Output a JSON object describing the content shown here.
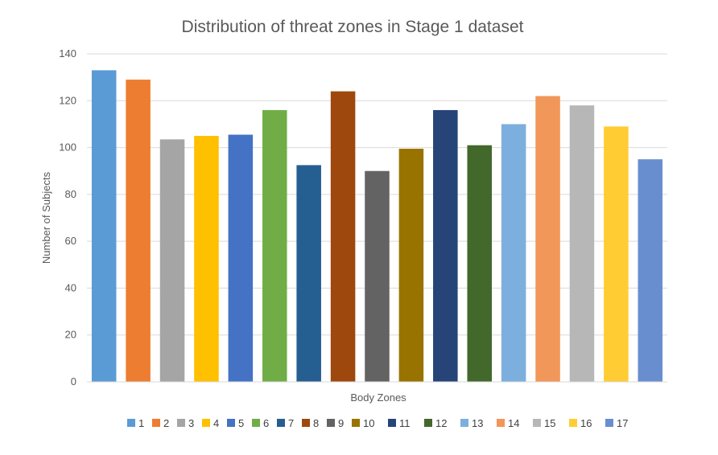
{
  "chart_data": {
    "type": "bar",
    "title": "Distribution of threat zones in Stage 1 dataset",
    "xlabel": "Body Zones",
    "ylabel": "Number of Subjects",
    "ylim": [
      0,
      140
    ],
    "yticks": [
      0,
      20,
      40,
      60,
      80,
      100,
      120,
      140
    ],
    "grid": true,
    "legend_position": "bottom",
    "series": [
      {
        "name": "1",
        "value": 133,
        "color": "#5B9BD5"
      },
      {
        "name": "2",
        "value": 129,
        "color": "#ED7D31"
      },
      {
        "name": "3",
        "value": 103.5,
        "color": "#A5A5A5"
      },
      {
        "name": "4",
        "value": 105,
        "color": "#FFC000"
      },
      {
        "name": "5",
        "value": 105.5,
        "color": "#4472C4"
      },
      {
        "name": "6",
        "value": 116,
        "color": "#70AD47"
      },
      {
        "name": "7",
        "value": 92.5,
        "color": "#255E91"
      },
      {
        "name": "8",
        "value": 124,
        "color": "#9E480E"
      },
      {
        "name": "9",
        "value": 90,
        "color": "#636363"
      },
      {
        "name": "10",
        "value": 99.5,
        "color": "#997300"
      },
      {
        "name": "11",
        "value": 116,
        "color": "#264478"
      },
      {
        "name": "12",
        "value": 101,
        "color": "#43682B"
      },
      {
        "name": "13",
        "value": 110,
        "color": "#7CAFDD"
      },
      {
        "name": "14",
        "value": 122,
        "color": "#F1975A"
      },
      {
        "name": "15",
        "value": 118,
        "color": "#B7B7B7"
      },
      {
        "name": "16",
        "value": 109,
        "color": "#FFCD33"
      },
      {
        "name": "17",
        "value": 95,
        "color": "#698ED0"
      }
    ]
  }
}
